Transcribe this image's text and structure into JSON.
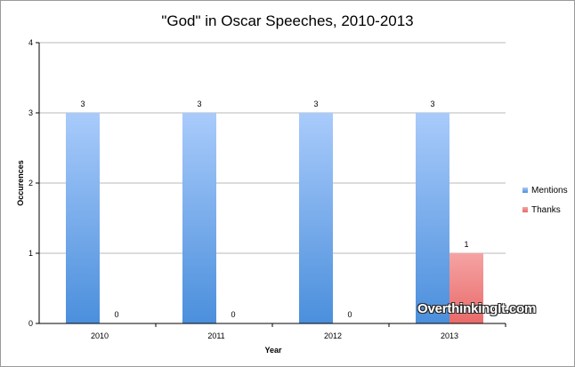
{
  "chart_data": {
    "type": "bar",
    "title": "\"God\" in Oscar Speeches, 2010-2013",
    "xlabel": "Year",
    "ylabel": "Occurences",
    "categories": [
      "2010",
      "2011",
      "2012",
      "2013"
    ],
    "ylim": [
      0,
      4
    ],
    "yticks": [
      0,
      1,
      2,
      3,
      4
    ],
    "grid": true,
    "legend_position": "right",
    "series": [
      {
        "name": "Mentions",
        "values": [
          3,
          3,
          3,
          3
        ],
        "color": "#7fb3ee"
      },
      {
        "name": "Thanks",
        "values": [
          0,
          0,
          0,
          1
        ],
        "color": "#f08a8a"
      }
    ]
  },
  "watermark": "OverthinkingIt.com"
}
